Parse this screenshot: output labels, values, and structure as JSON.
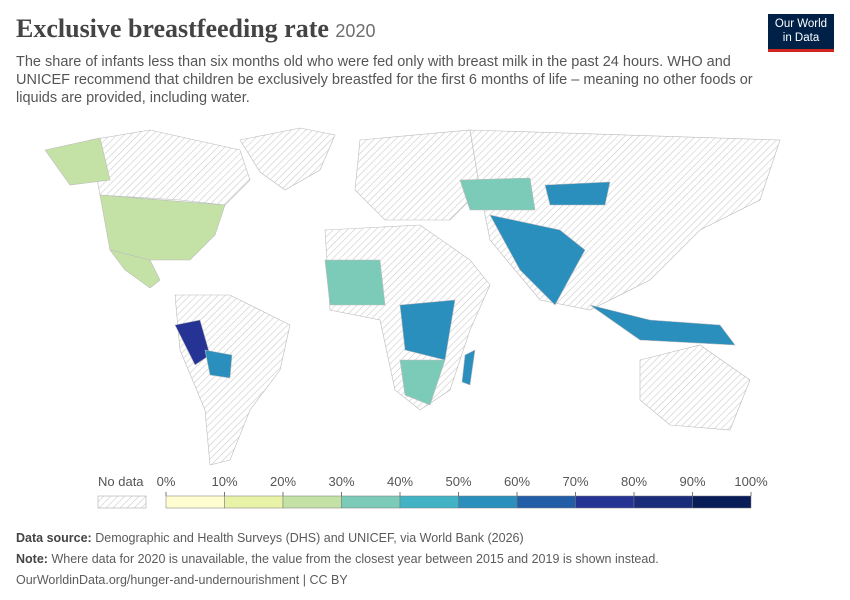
{
  "header": {
    "title": "Exclusive breastfeeding rate",
    "year": "2020",
    "subtitle": "The share of infants less than six months old who were fed only with breast milk in the past 24 hours. WHO and UNICEF recommend that children be exclusively breastfed for the first 6 months of life – meaning no other foods or liquids are provided, including water.",
    "logo": [
      "Our World",
      "in Data"
    ]
  },
  "legend": {
    "no_data": "No data",
    "ticks": [
      "0%",
      "10%",
      "20%",
      "30%",
      "40%",
      "50%",
      "60%",
      "70%",
      "80%",
      "90%",
      "100%"
    ],
    "colors": [
      "#fefdd0",
      "#e8f3a8",
      "#c4e2a6",
      "#7ccbb8",
      "#41b3c4",
      "#2a8fbd",
      "#225ea8",
      "#253494",
      "#1a2b7a",
      "#081d58"
    ]
  },
  "footer": {
    "source_label": "Data source:",
    "source": "Demographic and Health Surveys (DHS) and UNICEF, via World Bank (2026)",
    "note_label": "Note:",
    "note": "Where data for 2020 is unavailable, the value from the closest year between 2015 and 2019 is shown instead.",
    "url": "OurWorldinData.org/hunger-and-undernourishment | CC BY"
  }
}
